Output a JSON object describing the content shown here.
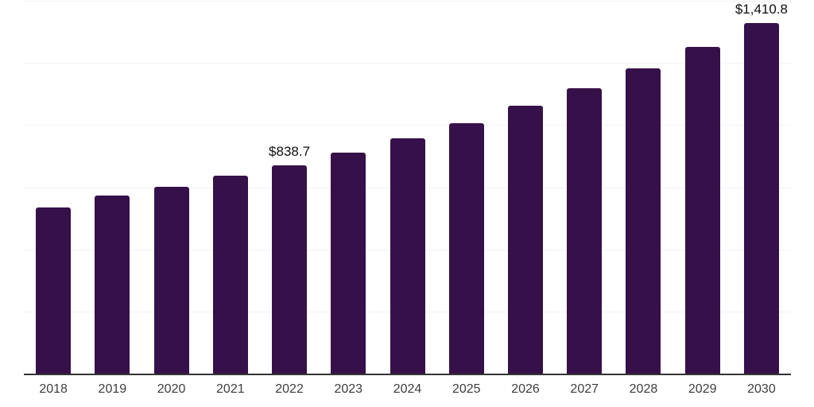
{
  "chart_data": {
    "type": "bar",
    "title": "",
    "xlabel": "",
    "ylabel": "",
    "categories": [
      "2018",
      "2019",
      "2020",
      "2021",
      "2022",
      "2023",
      "2024",
      "2025",
      "2026",
      "2027",
      "2028",
      "2029",
      "2030"
    ],
    "values": [
      669,
      715,
      751,
      797,
      838.7,
      889,
      948,
      1009,
      1078,
      1148,
      1229,
      1315,
      1410.8
    ],
    "value_labels": [
      "",
      "",
      "",
      "",
      "$838.7",
      "",
      "",
      "",
      "",
      "",
      "",
      "",
      "$1,410.8"
    ],
    "ylim": [
      0,
      1500
    ],
    "gridline_step": 250,
    "grid": true,
    "legend": false
  },
  "colors": {
    "bar": "#361149",
    "axis_line": "#333333",
    "gridline": "#f2f2f2",
    "tick_label": "#3d3d3d",
    "value_label": "#0f0f0f",
    "background": "#ffffff"
  }
}
